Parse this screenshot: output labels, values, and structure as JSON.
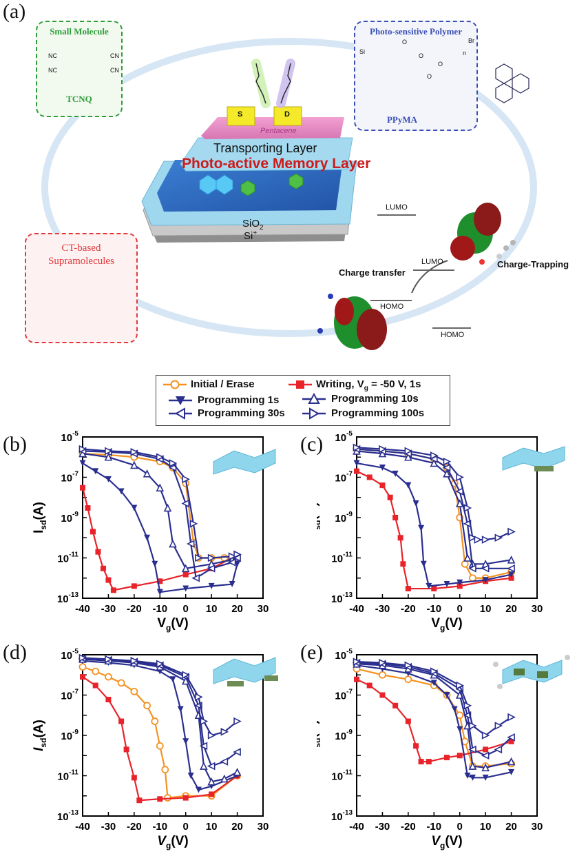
{
  "panel_labels": {
    "a": "(a)",
    "b": "(b)",
    "c": "(c)",
    "d": "(d)",
    "e": "(e)"
  },
  "schematic": {
    "small_molecule": {
      "title": "Small Molecule",
      "name": "TCNQ",
      "groups": [
        "NC",
        "CN",
        "NC",
        "CN"
      ]
    },
    "photo_polymer": {
      "title": "Photo-sensitive Polymer",
      "name": "PPyMA",
      "labels": [
        "Si",
        "O",
        "O",
        "Br",
        "n",
        "O",
        "O"
      ]
    },
    "ct_supramolecules": {
      "title_line1": "CT-based",
      "title_line2": "Supramolecules"
    },
    "device": {
      "source": "S",
      "drain": "D",
      "pentacene": "Pentacene",
      "transport": "Transporting Layer",
      "memory": "Photo-active Memory Layer",
      "dielectric": "SiO",
      "dielectric_sub": "2",
      "substrate": "Si",
      "substrate_sup": "+"
    },
    "energy": {
      "lumo_top": "LUMO",
      "lumo_mid": "LUMO",
      "homo_mid": "HOMO",
      "homo_bottom": "HOMO",
      "charge_transfer": "Charge transfer",
      "charge_trapping": "Charge-Trapping"
    },
    "colors": {
      "small_molecule": "#2e9d3a",
      "polymer": "#3a4fb4",
      "ct": "#e0383d",
      "ring": "#cfe3f3"
    }
  },
  "legend": [
    {
      "label": "Initial / Erase",
      "marker": "circle",
      "color": "#f39221"
    },
    {
      "label": "Writing, V",
      "sub": "g",
      "label_tail": " = -50 V, 1s",
      "marker": "square",
      "color": "#e8232a"
    },
    {
      "label": "Programming 1s",
      "marker": "tri-down",
      "color": "#2a2f8f"
    },
    {
      "label": "Programming 10s",
      "marker": "tri-up-open",
      "color": "#2a2f8f"
    },
    {
      "label": "Programming 30s",
      "marker": "tri-left-open",
      "color": "#2a2f8f"
    },
    {
      "label": "Programming 100s",
      "marker": "tri-right-open",
      "color": "#2a2f8f"
    }
  ],
  "chart_data": [
    {
      "id": "b",
      "type": "line",
      "y_scale": "log",
      "xlim": [
        -40,
        30
      ],
      "ylim": [
        1e-13,
        1e-05
      ],
      "xlabel": "V",
      "xlabel_sub": "g",
      "xlabel_tail": "(V)",
      "ylabel": "I",
      "ylabel_sub": "sd",
      "ylabel_tail": "(A)",
      "x_ticks": [
        "-40",
        "-30",
        "-20",
        "-10",
        "0",
        "10",
        "20",
        "30"
      ],
      "y_ticks": [
        {
          "b": "10",
          "e": "-5"
        },
        {
          "b": "10",
          "e": "-7"
        },
        {
          "b": "10",
          "e": "-9"
        },
        {
          "b": "10",
          "e": "-11"
        },
        {
          "b": "10",
          "e": "-13"
        }
      ],
      "series": [
        {
          "name": "Initial / Erase",
          "x": [
            -40,
            -30,
            -20,
            -10,
            -5,
            0,
            3,
            5,
            10,
            15,
            20
          ],
          "y": [
            1.5e-06,
            1.3e-06,
            1e-06,
            6e-07,
            3e-07,
            5e-08,
            6e-11,
            1e-11,
            1e-11,
            1e-11,
            1e-11
          ]
        },
        {
          "name": "Writing, Vg = -50 V, 1s",
          "x": [
            -40,
            -38,
            -36,
            -34,
            -32,
            -30,
            -28,
            -20,
            -10,
            0,
            10,
            18,
            20
          ],
          "y": [
            3e-08,
            3e-09,
            2e-10,
            2e-11,
            3e-12,
            8e-13,
            2.5e-13,
            4e-13,
            7e-13,
            1.5e-12,
            3e-12,
            1e-11,
            1.2e-11
          ]
        },
        {
          "name": "Programming 1s",
          "x": [
            -40,
            -35,
            -30,
            -25,
            -20,
            -15,
            -12,
            -10,
            0,
            10,
            18,
            20
          ],
          "y": [
            5e-07,
            2e-07,
            8e-08,
            2e-08,
            3e-09,
            1e-10,
            5e-12,
            2e-13,
            3e-13,
            4e-13,
            5e-13,
            5e-12
          ]
        },
        {
          "name": "Programming 10s",
          "x": [
            -40,
            -30,
            -20,
            -15,
            -10,
            -7,
            -5,
            0,
            10,
            18,
            20
          ],
          "y": [
            1.5e-06,
            1e-06,
            4e-07,
            1.5e-07,
            3e-08,
            3e-09,
            5e-11,
            3e-12,
            5e-12,
            8e-12,
            1e-11
          ]
        },
        {
          "name": "Programming 30s",
          "x": [
            -40,
            -30,
            -20,
            -10,
            -5,
            0,
            2,
            4,
            10,
            18,
            20
          ],
          "y": [
            2e-06,
            1.8e-06,
            1.5e-06,
            8e-07,
            3e-07,
            5e-09,
            5e-11,
            1e-12,
            3e-12,
            6e-12,
            1e-11
          ]
        },
        {
          "name": "Programming 100s",
          "x": [
            -40,
            -30,
            -20,
            -10,
            -5,
            0,
            3,
            5,
            10,
            18,
            20
          ],
          "y": [
            2.5e-06,
            2e-06,
            1.8e-06,
            1e-06,
            5e-07,
            8e-08,
            5e-10,
            1e-11,
            1e-11,
            1.2e-11,
            1.5e-11
          ]
        }
      ]
    },
    {
      "id": "c",
      "type": "line",
      "y_scale": "log",
      "xlim": [
        -40,
        30
      ],
      "ylim": [
        1e-13,
        1e-05
      ],
      "xlabel": "V",
      "xlabel_sub": "g",
      "xlabel_tail": "(V)",
      "ylabel": "I",
      "ylabel_sub": "sd",
      "ylabel_tail": "(A)",
      "x_ticks": [
        "-40",
        "-30",
        "-20",
        "-10",
        "0",
        "10",
        "20",
        "30"
      ],
      "y_ticks": [
        {
          "b": "10",
          "e": "-5"
        },
        {
          "b": "10",
          "e": "-7"
        },
        {
          "b": "10",
          "e": "-9"
        },
        {
          "b": "10",
          "e": "-11"
        },
        {
          "b": "10",
          "e": "-13"
        }
      ],
      "series": [
        {
          "name": "Initial / Erase",
          "x": [
            -40,
            -30,
            -20,
            -10,
            -5,
            -2,
            0,
            2,
            5,
            10,
            20
          ],
          "y": [
            2.5e-06,
            2e-06,
            1.5e-06,
            8e-07,
            3e-07,
            5e-08,
            1e-09,
            5e-12,
            1e-12,
            1e-12,
            2e-12
          ]
        },
        {
          "name": "Writing, Vg = -50 V, 1s",
          "x": [
            -40,
            -35,
            -30,
            -27,
            -25,
            -23,
            -22,
            -20,
            -10,
            0,
            10,
            20
          ],
          "y": [
            2e-07,
            1e-07,
            4e-08,
            1e-08,
            1e-09,
            1e-10,
            5e-12,
            3e-13,
            3e-13,
            4e-13,
            7e-13,
            1e-12
          ]
        },
        {
          "name": "Programming 1s",
          "x": [
            -40,
            -30,
            -25,
            -20,
            -17,
            -15,
            -14,
            -12,
            -5,
            0,
            10,
            20
          ],
          "y": [
            5e-07,
            3e-07,
            1.5e-07,
            4e-08,
            5e-09,
            3e-10,
            5e-12,
            4e-13,
            5e-13,
            6e-13,
            8e-13,
            1.5e-12
          ]
        },
        {
          "name": "Programming 10s",
          "x": [
            -40,
            -30,
            -20,
            -10,
            -5,
            0,
            3,
            5,
            10,
            20
          ],
          "y": [
            2e-06,
            1.5e-06,
            1e-06,
            5e-07,
            1.5e-07,
            5e-09,
            1e-11,
            5e-12,
            5e-12,
            8e-12
          ]
        },
        {
          "name": "Programming 30s",
          "x": [
            -40,
            -30,
            -20,
            -10,
            -5,
            0,
            3,
            5,
            10,
            20
          ],
          "y": [
            2.5e-06,
            2e-06,
            1.5e-06,
            8e-07,
            3e-07,
            2e-08,
            5e-10,
            3e-12,
            3e-12,
            3e-12
          ]
        },
        {
          "name": "Programming 100s",
          "x": [
            -40,
            -30,
            -20,
            -10,
            -5,
            0,
            3,
            5,
            7,
            10,
            15,
            20
          ],
          "y": [
            3e-06,
            2.5e-06,
            2e-06,
            1.2e-06,
            6e-07,
            1e-07,
            3e-09,
            1e-10,
            8e-11,
            8e-11,
            1e-10,
            2e-10
          ]
        }
      ]
    },
    {
      "id": "d",
      "type": "line",
      "y_scale": "log",
      "xlim": [
        -40,
        30
      ],
      "ylim": [
        1e-13,
        1e-05
      ],
      "xlabel": "V",
      "xlabel_sub": "g",
      "xlabel_tail": "(V)",
      "ylabel": "I",
      "ylabel_sub": "sd",
      "ylabel_tail": "(A)",
      "x_ticks": [
        "-40",
        "-30",
        "-20",
        "-10",
        "0",
        "10",
        "20",
        "30"
      ],
      "y_ticks": [
        {
          "b": "10",
          "e": "-5"
        },
        {
          "b": "10",
          "e": "-7"
        },
        {
          "b": "10",
          "e": "-9"
        },
        {
          "b": "10",
          "e": "-11"
        },
        {
          "b": "10",
          "e": "-13"
        }
      ],
      "series": [
        {
          "name": "Initial / Erase",
          "x": [
            -40,
            -35,
            -30,
            -25,
            -20,
            -15,
            -12,
            -10,
            -8,
            -7,
            0,
            10,
            20
          ],
          "y": [
            2.5e-06,
            1.5e-06,
            8e-07,
            4e-07,
            1.5e-07,
            3e-08,
            5e-09,
            3e-10,
            2e-11,
            8e-13,
            1e-12,
            1e-12,
            1e-11
          ]
        },
        {
          "name": "Writing, Vg = -50 V, 1s",
          "x": [
            -40,
            -35,
            -30,
            -25,
            -23,
            -20,
            -18,
            -10,
            0,
            10,
            20
          ],
          "y": [
            8e-07,
            3e-07,
            6e-08,
            5e-09,
            2e-10,
            8e-12,
            6e-13,
            7e-13,
            8e-13,
            1.2e-12,
            1e-11
          ]
        },
        {
          "name": "Programming 1s",
          "x": [
            -40,
            -30,
            -20,
            -10,
            -5,
            -2,
            0,
            2,
            5,
            10,
            20
          ],
          "y": [
            5e-06,
            4e-06,
            3e-06,
            1.5e-06,
            6e-07,
            2e-08,
            5e-10,
            1e-11,
            2e-12,
            3e-12,
            1e-11
          ]
        },
        {
          "name": "Programming 10s",
          "x": [
            -40,
            -30,
            -20,
            -10,
            0,
            5,
            7,
            10,
            15,
            20
          ],
          "y": [
            6e-06,
            5e-06,
            4e-06,
            2.5e-06,
            5e-07,
            1e-08,
            3e-11,
            5e-12,
            7e-12,
            1.5e-11
          ]
        },
        {
          "name": "Programming 30s",
          "x": [
            -40,
            -30,
            -20,
            -10,
            0,
            5,
            7,
            10,
            15,
            20
          ],
          "y": [
            6.5e-06,
            5.5e-06,
            4.5e-06,
            3e-06,
            8e-07,
            3e-08,
            3e-10,
            3e-11,
            5e-11,
            1.5e-10
          ]
        },
        {
          "name": "Programming 100s",
          "x": [
            -40,
            -30,
            -20,
            -10,
            0,
            5,
            7,
            10,
            15,
            20
          ],
          "y": [
            7e-06,
            6e-06,
            5e-06,
            3.5e-06,
            1e-06,
            8e-08,
            5e-09,
            1e-09,
            1.5e-09,
            5e-09
          ]
        }
      ]
    },
    {
      "id": "e",
      "type": "line",
      "y_scale": "log",
      "xlim": [
        -40,
        30
      ],
      "ylim": [
        1e-13,
        1e-05
      ],
      "xlabel": "V",
      "xlabel_sub": "g",
      "xlabel_tail": "(V)",
      "ylabel": "I",
      "ylabel_sub": "sd",
      "ylabel_tail": "(A)",
      "x_ticks": [
        "-40",
        "-30",
        "-20",
        "-10",
        "0",
        "10",
        "20",
        "30"
      ],
      "y_ticks": [
        {
          "b": "10",
          "e": "-5"
        },
        {
          "b": "10",
          "e": "-7"
        },
        {
          "b": "10",
          "e": "-9"
        },
        {
          "b": "10",
          "e": "-11"
        },
        {
          "b": "10",
          "e": "-13"
        }
      ],
      "series": [
        {
          "name": "Initial / Erase",
          "x": [
            -40,
            -30,
            -20,
            -10,
            -5,
            0,
            2,
            5,
            10,
            20
          ],
          "y": [
            2e-06,
            1e-06,
            6e-07,
            3e-07,
            1e-07,
            1e-08,
            5e-10,
            3e-11,
            3e-11,
            4e-11
          ]
        },
        {
          "name": "Writing, Vg = -50 V, 1s",
          "x": [
            -40,
            -35,
            -30,
            -25,
            -20,
            -17,
            -15,
            -12,
            -5,
            0,
            10,
            20
          ],
          "y": [
            6e-07,
            3e-07,
            1e-07,
            3e-08,
            5e-09,
            3e-10,
            5e-11,
            5e-11,
            8e-11,
            1e-10,
            2e-10,
            5e-10
          ]
        },
        {
          "name": "Programming 1s",
          "x": [
            -40,
            -30,
            -20,
            -10,
            -5,
            -2,
            0,
            3,
            5,
            10,
            20
          ],
          "y": [
            3e-06,
            2e-06,
            1.2e-06,
            4e-07,
            1e-07,
            2e-08,
            2e-09,
            1e-11,
            8e-12,
            8e-12,
            1.5e-11
          ]
        },
        {
          "name": "Programming 10s",
          "x": [
            -40,
            -30,
            -20,
            -10,
            0,
            3,
            5,
            10,
            20
          ],
          "y": [
            3.5e-06,
            3e-06,
            2e-06,
            1e-06,
            1e-07,
            3e-09,
            3e-11,
            2.5e-11,
            5e-11
          ]
        },
        {
          "name": "Programming 30s",
          "x": [
            -40,
            -30,
            -20,
            -10,
            0,
            3,
            5,
            10,
            15,
            20
          ],
          "y": [
            4e-06,
            3.5e-06,
            2.5e-06,
            1.2e-06,
            2e-07,
            1e-08,
            2e-10,
            1e-10,
            2e-10,
            8e-10
          ]
        },
        {
          "name": "Programming 100s",
          "x": [
            -40,
            -30,
            -20,
            -10,
            0,
            3,
            5,
            10,
            15,
            20
          ],
          "y": [
            4.5e-06,
            4e-06,
            3e-06,
            1.5e-06,
            3e-07,
            3e-08,
            3e-09,
            1e-09,
            3e-09,
            8e-09
          ]
        }
      ]
    }
  ]
}
